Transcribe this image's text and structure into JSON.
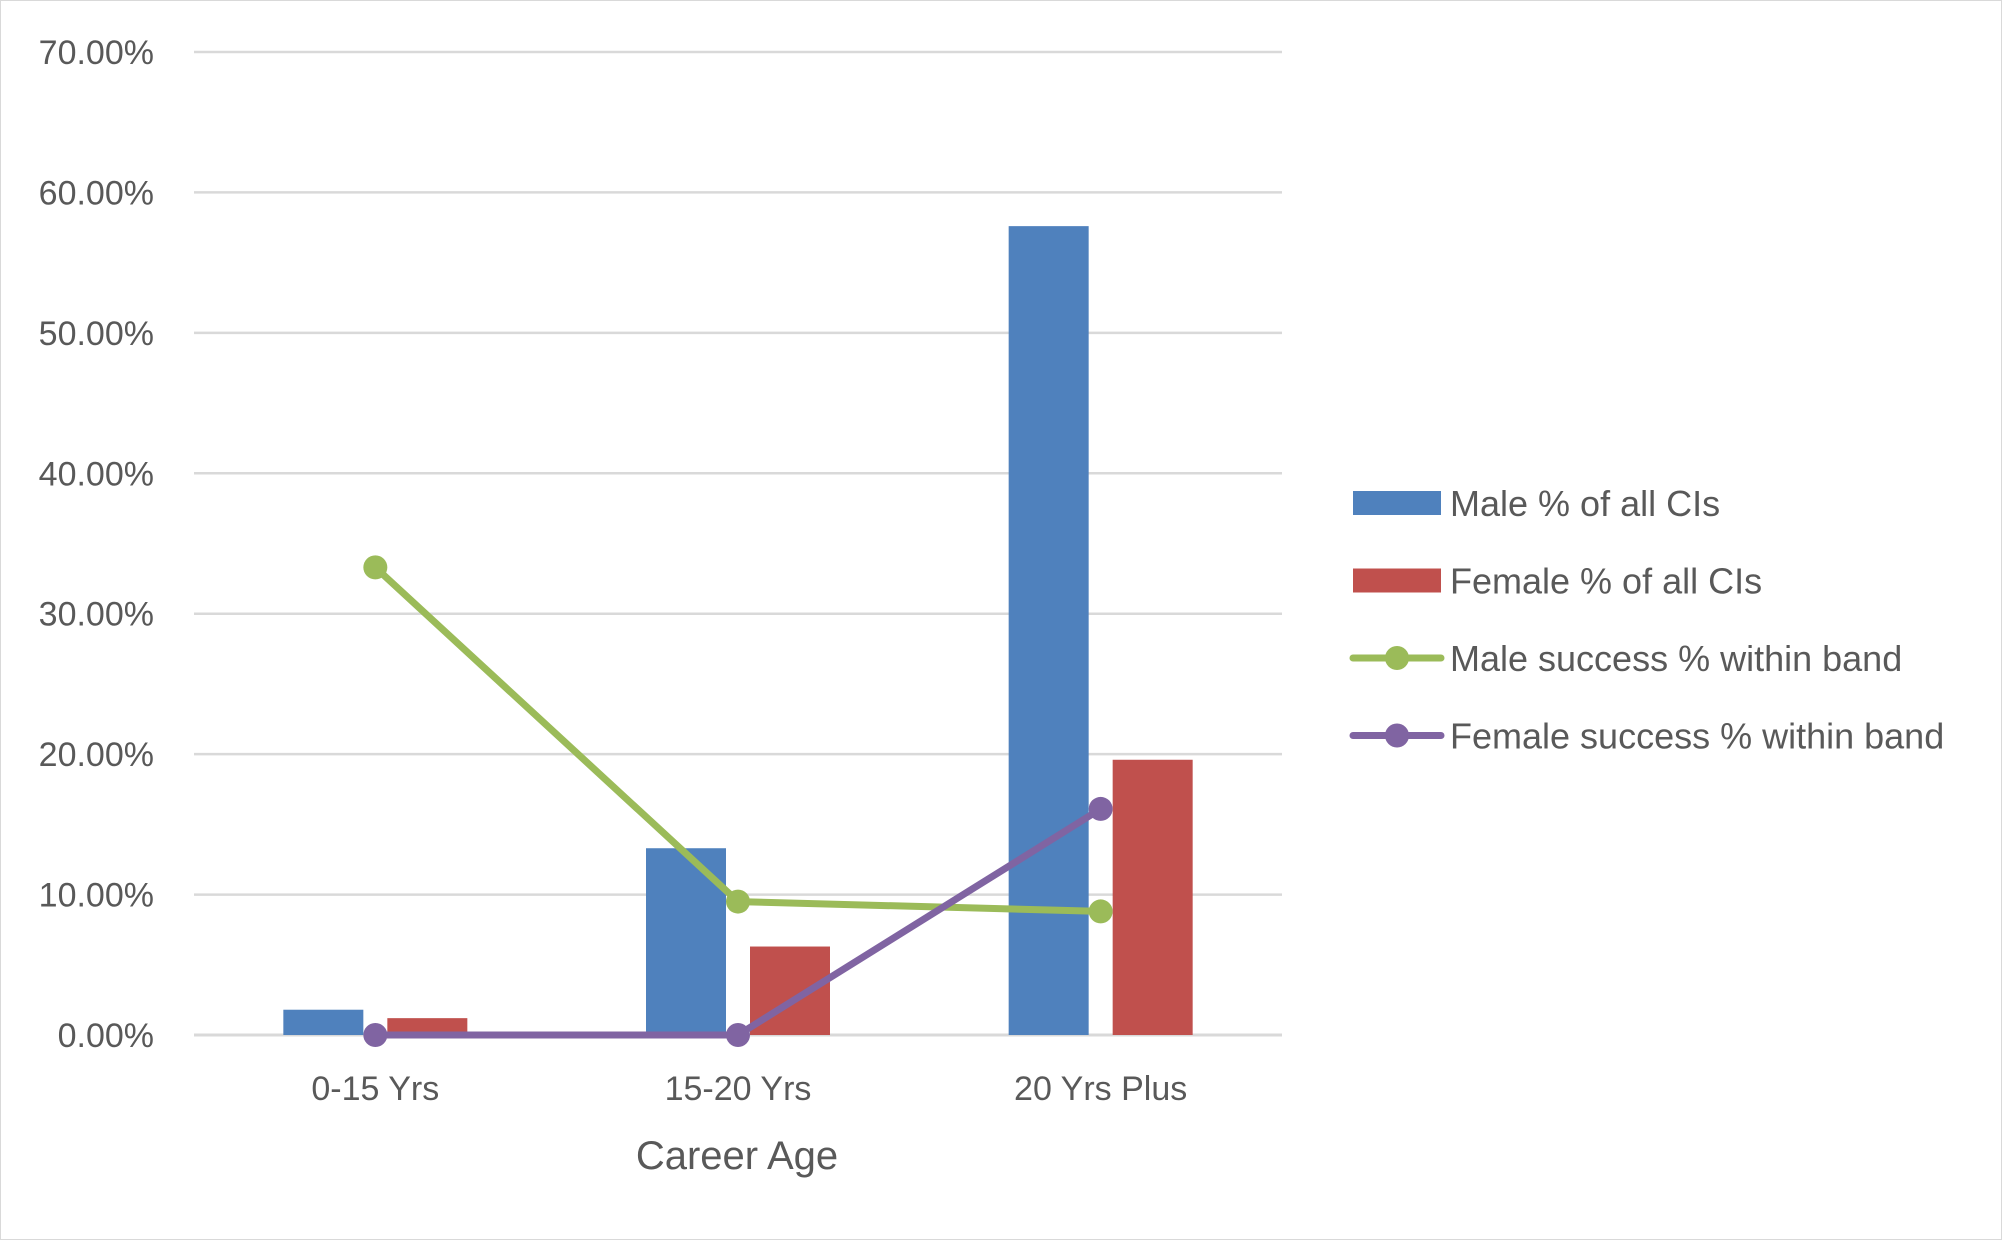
{
  "chart_data": {
    "type": "bar",
    "title": "",
    "xlabel": "Career Age",
    "ylabel": "",
    "categories": [
      "0-15 Yrs",
      "15-20 Yrs",
      "20 Yrs Plus"
    ],
    "ylim": [
      0,
      70
    ],
    "yticks": [
      0,
      10,
      20,
      30,
      40,
      50,
      60,
      70
    ],
    "ytick_labels": [
      "0.00%",
      "10.00%",
      "20.00%",
      "30.00%",
      "40.00%",
      "50.00%",
      "60.00%",
      "70.00%"
    ],
    "grid": true,
    "legend_position": "right",
    "series": [
      {
        "name": "Male % of all CIs",
        "type": "bar",
        "color": "#4f81bd",
        "values": [
          1.8,
          13.3,
          57.6
        ]
      },
      {
        "name": "Female % of all CIs",
        "type": "bar",
        "color": "#c0504d",
        "values": [
          1.2,
          6.3,
          19.6
        ]
      },
      {
        "name": "Male success % within band",
        "type": "line",
        "color": "#9bbb59",
        "values": [
          33.3,
          9.5,
          8.8
        ]
      },
      {
        "name": "Female success % within band",
        "type": "line",
        "color": "#8064a2",
        "values": [
          0,
          0,
          16.1
        ]
      }
    ]
  }
}
